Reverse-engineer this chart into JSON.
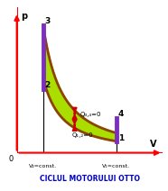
{
  "title": "CICLUL MOTORULUI OTTO",
  "title_color": "#0000CC",
  "background_color": "#ffffff",
  "fill_color": "#AADD00",
  "curve_color": "#8B4500",
  "curve_lw": 2.0,
  "v2_line_color": "#7B2FBE",
  "v1_line_color": "#7B2FBE",
  "v2_line_lw": 3.5,
  "v1_line_lw": 3.5,
  "axis_color": "#FF0000",
  "x_label": "V",
  "y_label": "p",
  "label_v2": "V₂=const.",
  "label_v1": "V₁=const.",
  "label_Q34": "Q₃,₄=0",
  "label_Q12": "Q₁,₂=0",
  "v2": 0.18,
  "v1": 0.68,
  "p3": 0.88,
  "p2": 0.44,
  "p4": 0.24,
  "p1": 0.08,
  "gamma": 1.4,
  "arrow_color": "#CC0000",
  "xlim": [
    0,
    1.0
  ],
  "ylim": [
    0,
    1.0
  ]
}
